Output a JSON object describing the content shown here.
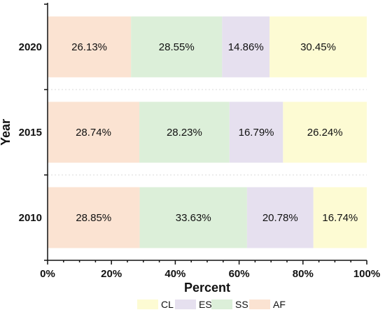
{
  "chart_data": {
    "type": "bar",
    "orientation": "horizontal",
    "stacked": true,
    "categories": [
      "2020",
      "2015",
      "2010"
    ],
    "series": [
      {
        "name": "AF",
        "color": "#fbe3d2",
        "values": [
          26.13,
          28.74,
          28.85
        ]
      },
      {
        "name": "SS",
        "color": "#dcefd9",
        "values": [
          28.55,
          28.23,
          33.63
        ]
      },
      {
        "name": "ES",
        "color": "#e6e0ef",
        "values": [
          14.86,
          16.79,
          20.78
        ]
      },
      {
        "name": "CL",
        "color": "#fdfbd3",
        "values": [
          30.45,
          26.24,
          16.74
        ]
      }
    ],
    "data_labels": [
      [
        "26.13%",
        "28.55%",
        "14.86%",
        "30.45%"
      ],
      [
        "28.74%",
        "28.23%",
        "16.79%",
        "26.24%"
      ],
      [
        "28.85%",
        "33.63%",
        "20.78%",
        "16.74%"
      ]
    ],
    "xlabel": "Percent",
    "ylabel": "Year",
    "xlim": [
      0,
      100
    ],
    "xticks": [
      "0%",
      "20%",
      "40%",
      "60%",
      "80%",
      "100%"
    ],
    "legend_order": [
      "CL",
      "ES",
      "SS",
      "AF"
    ],
    "legend_position": "bottom",
    "grid": false
  }
}
